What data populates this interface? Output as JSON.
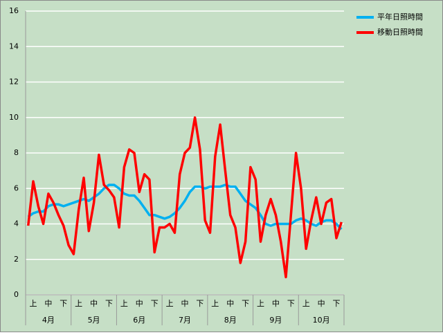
{
  "chart_data": {
    "type": "line",
    "categories": [
      null,
      "上",
      null,
      null,
      "中",
      null,
      null,
      "下",
      null,
      null,
      "上",
      null,
      null,
      "中",
      null,
      null,
      "下",
      null,
      null,
      "上",
      null,
      null,
      "中",
      null,
      null,
      "下",
      null,
      null,
      "上",
      null,
      null,
      "中",
      null,
      null,
      "下",
      null,
      null,
      "上",
      null,
      null,
      "中",
      null,
      null,
      "下",
      null,
      null,
      "上",
      null,
      null,
      "中",
      null,
      null,
      "下",
      null,
      null,
      "上",
      null,
      null,
      "中",
      null,
      null,
      "下",
      null
    ],
    "groups": [
      "4月",
      "5月",
      "6月",
      "7月",
      "8月",
      "9月",
      "10月"
    ],
    "series": [
      {
        "name": "平年日照時間",
        "color": "#00b0f0",
        "values": [
          4.4,
          4.6,
          4.7,
          4.7,
          5.0,
          5.1,
          5.1,
          5.0,
          5.1,
          5.2,
          5.3,
          5.4,
          5.3,
          5.5,
          5.7,
          6.0,
          6.2,
          6.2,
          6.0,
          5.7,
          5.6,
          5.6,
          5.3,
          4.9,
          4.5,
          4.5,
          4.4,
          4.3,
          4.4,
          4.6,
          4.9,
          5.3,
          5.8,
          6.1,
          6.1,
          6.0,
          6.1,
          6.1,
          6.1,
          6.2,
          6.1,
          6.1,
          5.7,
          5.3,
          5.1,
          4.9,
          4.5,
          4.0,
          3.9,
          4.0,
          4.0,
          4.0,
          4.0,
          4.2,
          4.3,
          4.2,
          4.0,
          3.9,
          4.1,
          4.2,
          4.2,
          4.0,
          3.7
        ]
      },
      {
        "name": "移動日照時間",
        "color": "#ff0000",
        "values": [
          3.9,
          6.4,
          5.0,
          4.0,
          5.7,
          5.2,
          4.5,
          3.9,
          2.8,
          2.3,
          4.8,
          6.6,
          3.6,
          5.2,
          7.9,
          6.2,
          5.9,
          5.5,
          3.8,
          7.2,
          8.2,
          8.0,
          5.8,
          6.8,
          6.5,
          2.4,
          3.8,
          3.8,
          4.0,
          3.5,
          6.8,
          8.0,
          8.3,
          10.0,
          8.2,
          4.2,
          3.5,
          7.8,
          9.6,
          7.0,
          4.5,
          3.8,
          1.8,
          3.0,
          7.2,
          6.5,
          3.0,
          4.5,
          5.4,
          4.5,
          3.0,
          1.0,
          4.5,
          8.0,
          6.0,
          2.6,
          4.2,
          5.5,
          4.0,
          5.2,
          5.4,
          3.2,
          4.1
        ]
      }
    ],
    "ylim": [
      0,
      16
    ],
    "yticks": [
      0,
      2,
      4,
      6,
      8,
      10,
      12,
      14,
      16
    ],
    "grid": true
  }
}
